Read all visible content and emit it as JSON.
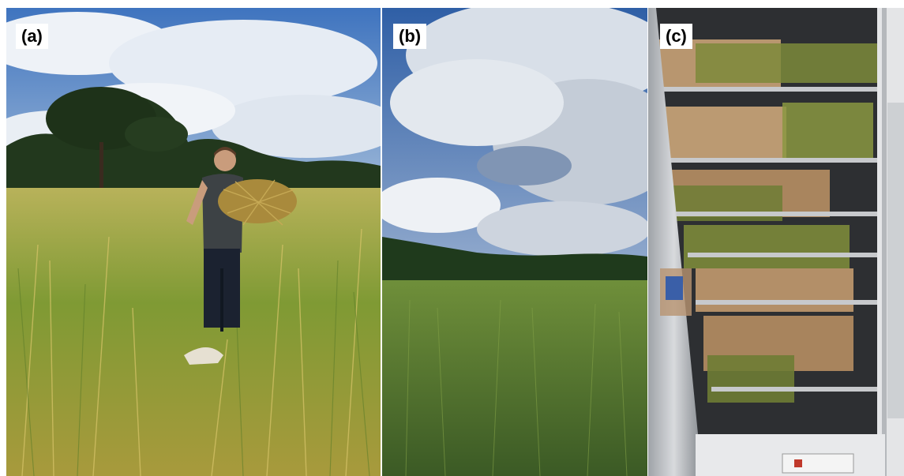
{
  "panels": [
    {
      "label": "(a)"
    },
    {
      "label": "(b)"
    },
    {
      "label": "(c)"
    }
  ],
  "colors": {
    "sky_blue": "#4a7dc2",
    "cloud": "#e9eef5",
    "grass": "#8a9a3a",
    "dry_grass": "#c9b15a",
    "forest": "#23391f",
    "steel": "#b9bcc0",
    "paper_bag": "#b8966f"
  }
}
